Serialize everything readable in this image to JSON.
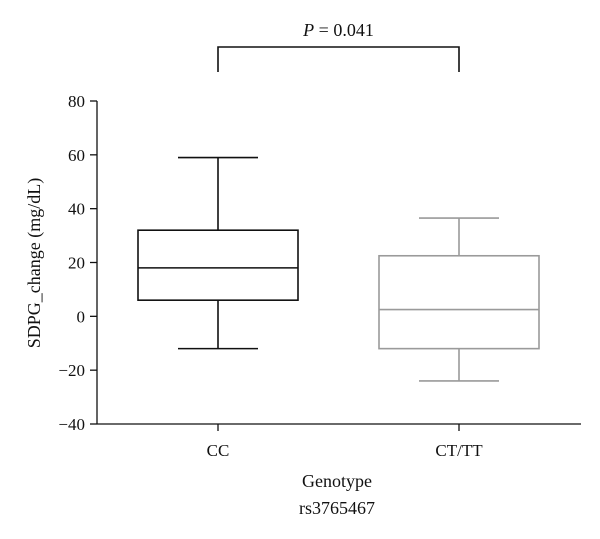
{
  "chart_data": {
    "type": "boxplot",
    "ylabel": "SDPG_change (mg/dL)",
    "xlabel": "Genotype",
    "xlabel_sub": "rs3765467",
    "ylim": [
      -40,
      80
    ],
    "yticks": [
      -40,
      -20,
      0,
      20,
      40,
      60,
      80
    ],
    "ytick_labels": [
      "−40",
      "−20",
      "0",
      "20",
      "40",
      "60",
      "80"
    ],
    "grid": false,
    "categories": [
      "CC",
      "CT/TT"
    ],
    "boxes": [
      {
        "category": "CC",
        "whisker_low": -12,
        "q1": 6,
        "median": 18,
        "q3": 32,
        "whisker_high": 59,
        "color": "#111111"
      },
      {
        "category": "CT/TT",
        "whisker_low": -24,
        "q1": -12,
        "median": 2.5,
        "q3": 22.5,
        "whisker_high": 36.5,
        "color": "#9a9a9a"
      }
    ],
    "annotation": {
      "p_symbol": "P",
      "p_rest": " = 0.041",
      "between": [
        "CC",
        "CT/TT"
      ]
    }
  }
}
